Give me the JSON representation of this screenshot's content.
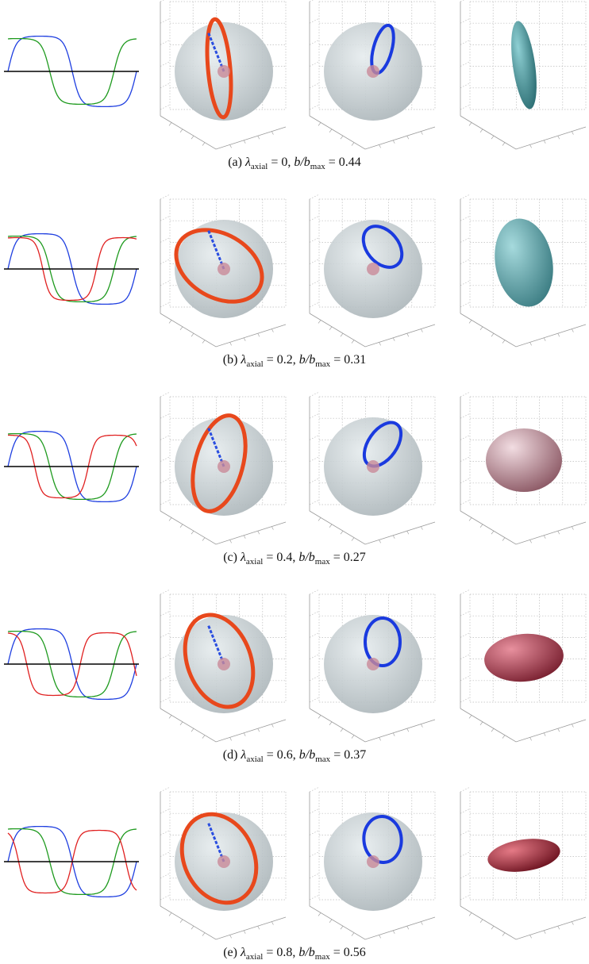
{
  "lambda_symbol": "λ",
  "lambda_subscript": "axial",
  "ratio_symbol": "b/b",
  "ratio_subscript": "max",
  "equals": "=",
  "separator": ",",
  "rows": [
    {
      "label": "(a)",
      "lambda_value": "0",
      "ratio_value": "0.44"
    },
    {
      "label": "(b)",
      "lambda_value": "0.2",
      "ratio_value": "0.31"
    },
    {
      "label": "(c)",
      "lambda_value": "0.4",
      "ratio_value": "0.27"
    },
    {
      "label": "(d)",
      "lambda_value": "0.6",
      "ratio_value": "0.37"
    },
    {
      "label": "(e)",
      "lambda_value": "0.8",
      "ratio_value": "0.56"
    }
  ]
}
